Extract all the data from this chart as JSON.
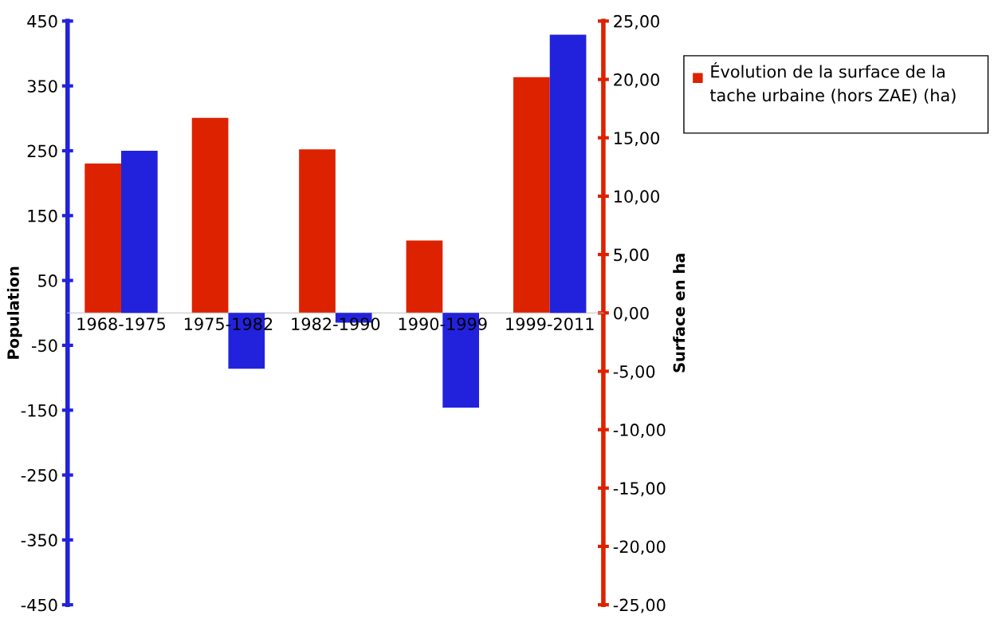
{
  "chart_data": {
    "type": "bar",
    "categories": [
      "1968-1975",
      "1975-1982",
      "1982-1990",
      "1990-1999",
      "1999-2011"
    ],
    "series": [
      {
        "name": "Évolution de la surface de la tache urbaine (hors ZAE) (ha)",
        "color": "#dd2200",
        "axis": "y2",
        "values": [
          12.8,
          16.7,
          14.0,
          6.2,
          20.2
        ]
      },
      {
        "color": "#2222dd",
        "values": [
          250,
          -86,
          -15,
          -146,
          429
        ]
      }
    ],
    "ylabel": "Population",
    "y2label": "Surface en ha",
    "ylim": [
      -450,
      450
    ],
    "yticks": [
      -450,
      -350,
      -250,
      -150,
      -50,
      50,
      150,
      250,
      350,
      450
    ],
    "y2lim": [
      -25,
      25
    ],
    "y2ticks": [
      {
        "value": -25,
        "label": "-25,00"
      },
      {
        "value": -20,
        "label": "-20,00"
      },
      {
        "value": -15,
        "label": "-15,00"
      },
      {
        "value": -10,
        "label": "-10,00"
      },
      {
        "value": -5,
        "label": "-5,00"
      },
      {
        "value": 0,
        "label": "0,00"
      },
      {
        "value": 5,
        "label": "5,00"
      },
      {
        "value": 10,
        "label": "10,00"
      },
      {
        "value": 15,
        "label": "15,00"
      },
      {
        "value": 20,
        "label": "20,00"
      },
      {
        "value": 25,
        "label": "25,00"
      }
    ],
    "grid": false,
    "legend": "right"
  }
}
